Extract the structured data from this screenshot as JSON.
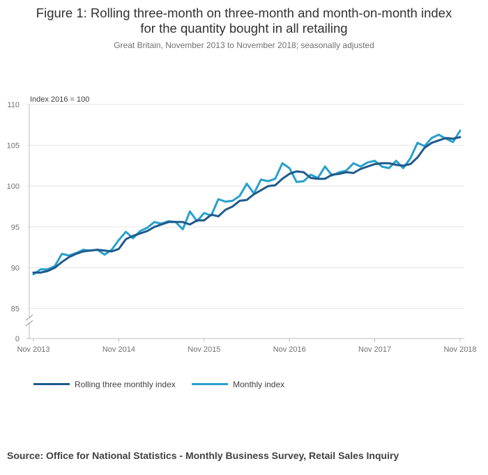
{
  "title_lines": [
    "Figure 1: Rolling three-month on three-month and month-on-month index",
    "for the quantity bought in all retailing"
  ],
  "subtitle": "Great Britain, November 2013 to November 2018; seasonally adjusted",
  "source": "Source: Office for National Statistics - Monthly Business Survey, Retail Sales Inquiry",
  "colors": {
    "rolling": "#1f5a8c",
    "monthly": "#27a0cc",
    "grid": "#e5e5e5",
    "axis": "#bcbcbc"
  },
  "chart_data": {
    "type": "line",
    "title": "Figure 1: Rolling three-month on three-month and month-on-month index for the quantity bought in all retailing",
    "ylabel": "Index 2016 = 100",
    "xlabel": "",
    "ylim": [
      85,
      110
    ],
    "axis_break": true,
    "y_ticks": [
      "110",
      "105",
      "100",
      "95",
      "90",
      "85",
      "0"
    ],
    "x_ticks": [
      "Nov 2013",
      "Nov 2014",
      "Nov 2015",
      "Nov 2016",
      "Nov 2017",
      "Nov 2018"
    ],
    "x_count": 61,
    "legend_position": "bottom-left",
    "series": [
      {
        "name": "Rolling three monthly index",
        "values": [
          89.4,
          89.4,
          89.6,
          90.0,
          90.7,
          91.3,
          91.7,
          92.0,
          92.1,
          92.2,
          92.1,
          92.0,
          92.3,
          93.5,
          93.9,
          94.2,
          94.5,
          95.0,
          95.3,
          95.6,
          95.6,
          95.6,
          95.3,
          95.8,
          95.8,
          96.5,
          96.3,
          97.1,
          97.5,
          98.2,
          98.3,
          99.0,
          99.5,
          100.0,
          100.1,
          100.9,
          101.5,
          101.8,
          101.7,
          101.0,
          100.9,
          100.9,
          101.4,
          101.5,
          101.7,
          101.6,
          102.1,
          102.4,
          102.7,
          102.8,
          102.8,
          102.6,
          102.5,
          102.7,
          103.5,
          104.7,
          105.3,
          105.6,
          105.9,
          105.8,
          106.0
        ]
      },
      {
        "name": "Monthly index",
        "values": [
          89.2,
          89.8,
          89.8,
          90.2,
          91.7,
          91.5,
          91.8,
          92.2,
          92.1,
          92.2,
          91.6,
          92.2,
          93.4,
          94.4,
          93.6,
          94.5,
          94.9,
          95.6,
          95.4,
          95.7,
          95.6,
          94.7,
          96.9,
          95.7,
          96.7,
          96.4,
          98.4,
          98.1,
          98.2,
          98.8,
          100.3,
          99.1,
          100.8,
          100.6,
          100.9,
          102.8,
          102.2,
          100.5,
          100.6,
          101.4,
          101.0,
          102.4,
          101.3,
          101.7,
          101.9,
          102.8,
          102.4,
          102.9,
          103.1,
          102.4,
          102.2,
          103.1,
          102.2,
          103.4,
          105.3,
          104.9,
          105.9,
          106.3,
          105.8,
          105.4,
          106.8
        ]
      }
    ]
  }
}
